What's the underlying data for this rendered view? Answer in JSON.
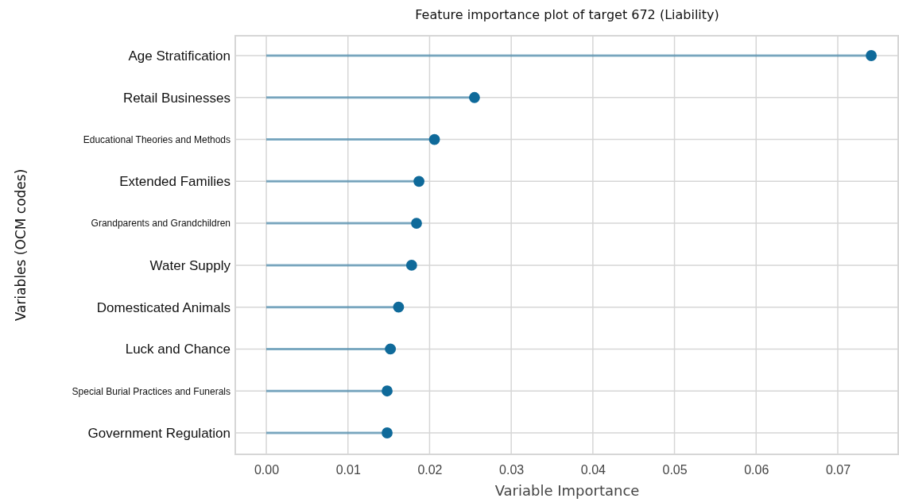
{
  "chart_data": {
    "type": "lollipop",
    "orientation": "horizontal",
    "title": "Feature importance plot of target 672 (Liability)",
    "xlabel": "Variable Importance",
    "ylabel": "Variables (OCM codes)",
    "categories": [
      "Age Stratification",
      "Retail Businesses",
      "Educational Theories and Methods",
      "Extended Families",
      "Grandparents and Grandchildren",
      "Water Supply",
      "Domesticated Animals",
      "Luck and Chance",
      "Special Burial Practices and Funerals",
      "Government Regulation"
    ],
    "values": [
      0.0741,
      0.0255,
      0.0206,
      0.0187,
      0.0184,
      0.0178,
      0.0162,
      0.0152,
      0.0148,
      0.0148
    ],
    "color": "#0f6a9a",
    "marker": "circle",
    "grid": true,
    "xlim": [
      -0.0038,
      0.0775
    ],
    "xticks": [
      {
        "value": 0,
        "label": "0.00"
      },
      {
        "value": 0.01,
        "label": "0.01"
      },
      {
        "value": 0.02,
        "label": "0.02"
      },
      {
        "value": 0.03,
        "label": "0.03"
      },
      {
        "value": 0.04,
        "label": "0.04"
      },
      {
        "value": 0.05,
        "label": "0.05"
      },
      {
        "value": 0.06,
        "label": "0.06"
      },
      {
        "value": 0.07,
        "label": "0.07"
      }
    ]
  }
}
